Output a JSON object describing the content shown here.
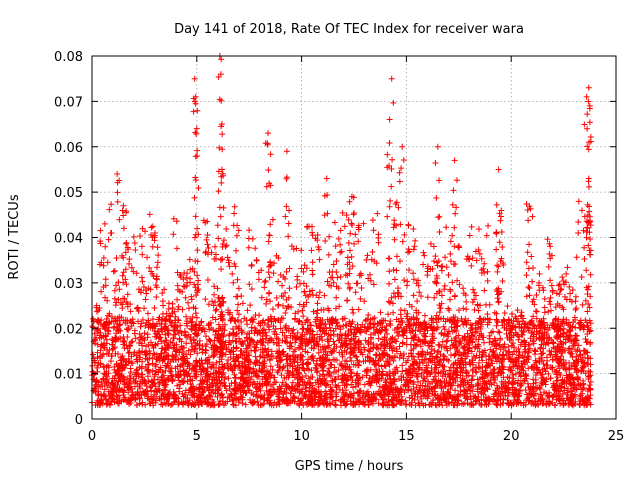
{
  "chart_data": {
    "type": "scatter",
    "title": "Day 141 of 2018, Rate Of TEC Index for receiver wara",
    "xlabel": "GPS time / hours",
    "ylabel": "ROTI / TECUs",
    "xlim": [
      0,
      25
    ],
    "ylim": [
      0,
      0.08
    ],
    "x_ticks": [
      0,
      5,
      10,
      15,
      20,
      25
    ],
    "x_tick_labels": [
      "0",
      "5",
      "10",
      "15",
      "20",
      "25"
    ],
    "y_ticks": [
      0,
      0.01,
      0.02,
      0.03,
      0.04,
      0.05,
      0.06,
      0.07,
      0.08
    ],
    "y_tick_labels": [
      "0",
      "0.01",
      "0.02",
      "0.03",
      "0.04",
      "0.05",
      "0.06",
      "0.07",
      "0.08"
    ],
    "grid": true,
    "marker": "+",
    "color": "#ff0000",
    "series": [
      {
        "name": "ROTI",
        "x_range": [
          0.0,
          23.8
        ],
        "baseline_range": [
          0.003,
          0.015
        ],
        "notable_points": [
          {
            "x": 1.2,
            "y": 0.054
          },
          {
            "x": 1.5,
            "y": 0.047
          },
          {
            "x": 4.9,
            "y": 0.075
          },
          {
            "x": 4.95,
            "y": 0.071
          },
          {
            "x": 5.0,
            "y": 0.064
          },
          {
            "x": 6.1,
            "y": 0.08
          },
          {
            "x": 6.15,
            "y": 0.076
          },
          {
            "x": 6.2,
            "y": 0.065
          },
          {
            "x": 6.2,
            "y": 0.055
          },
          {
            "x": 8.4,
            "y": 0.063
          },
          {
            "x": 9.3,
            "y": 0.059
          },
          {
            "x": 11.2,
            "y": 0.053
          },
          {
            "x": 12.4,
            "y": 0.049
          },
          {
            "x": 14.3,
            "y": 0.075
          },
          {
            "x": 14.2,
            "y": 0.066
          },
          {
            "x": 14.8,
            "y": 0.06
          },
          {
            "x": 16.5,
            "y": 0.06
          },
          {
            "x": 17.3,
            "y": 0.057
          },
          {
            "x": 19.4,
            "y": 0.055
          },
          {
            "x": 23.7,
            "y": 0.073
          },
          {
            "x": 23.6,
            "y": 0.071
          },
          {
            "x": 23.75,
            "y": 0.069
          },
          {
            "x": 23.7,
            "y": 0.053
          }
        ]
      }
    ]
  }
}
